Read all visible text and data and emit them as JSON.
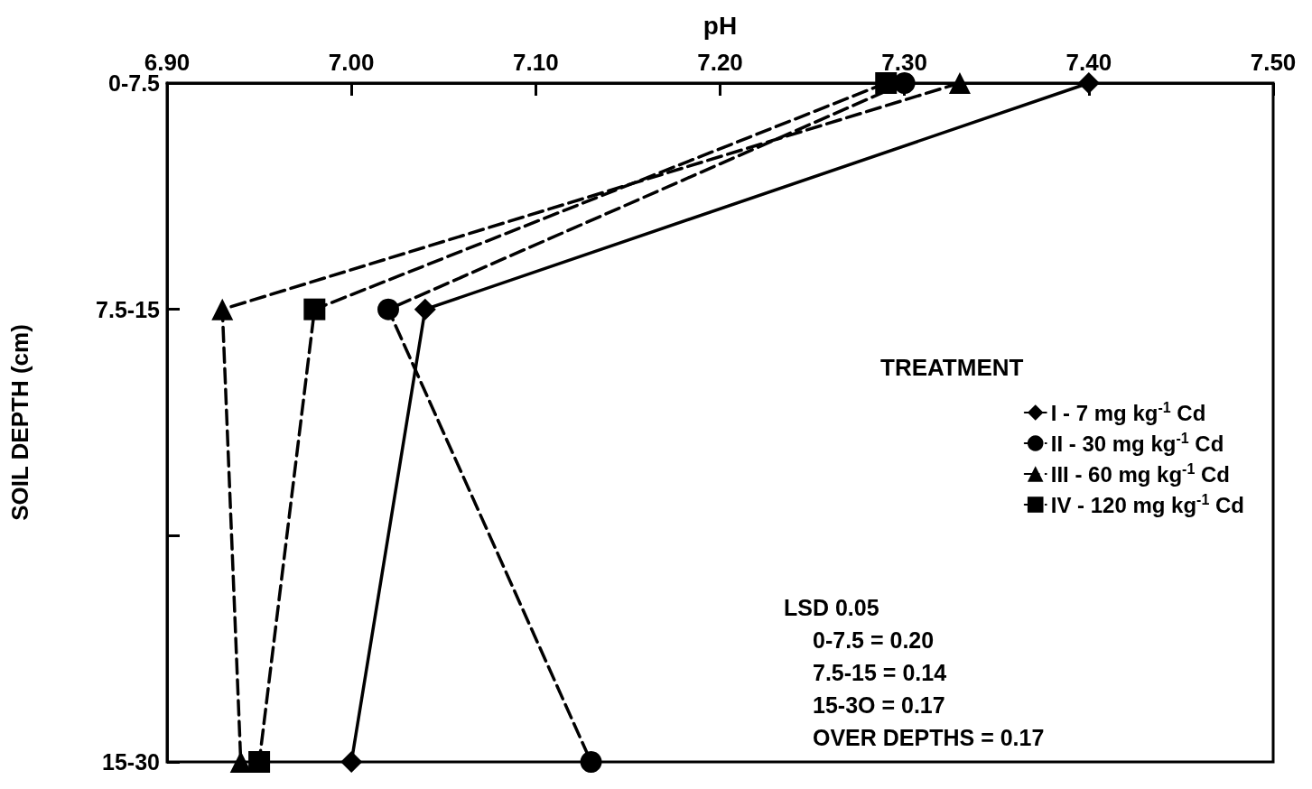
{
  "chart_data": {
    "type": "line",
    "xlabel": "pH",
    "ylabel": "SOIL DEPTH (cm)",
    "legend_title": "TREATMENT",
    "legend": "right",
    "grid": false,
    "xlim": [
      6.9,
      7.5
    ],
    "xticks": [
      {
        "value": 6.9,
        "label": "6.90"
      },
      {
        "value": 7.0,
        "label": "7.00"
      },
      {
        "value": 7.1,
        "label": "7.10"
      },
      {
        "value": 7.2,
        "label": "7.20"
      },
      {
        "value": 7.3,
        "label": "7.30"
      },
      {
        "value": 7.4,
        "label": "7.40"
      },
      {
        "value": 7.5,
        "label": "7.50"
      }
    ],
    "orientation": "horizontal",
    "categories": [
      "0-7.5",
      "7.5-15",
      null,
      "15-30"
    ],
    "series": [
      {
        "name": "I - 7 mg kg$^{-1}$ Cd",
        "color": "#000000",
        "marker": "diamond",
        "line_style": "solid",
        "values": [
          7.4,
          7.04,
          null,
          7.0
        ]
      },
      {
        "name": "II - 30 mg kg$^{-1}$ Cd",
        "color": "#000000",
        "marker": "circle",
        "line_style": "dashed",
        "values": [
          7.3,
          7.02,
          null,
          7.13
        ]
      },
      {
        "name": "III - 60 mg kg$^{-1}$ Cd",
        "color": "#000000",
        "marker": "triangle",
        "line_style": "dashed",
        "values": [
          7.33,
          6.93,
          null,
          6.94
        ]
      },
      {
        "name": "IV - 120 mg kg$^{-1}$ Cd",
        "color": "#000000",
        "marker": "square",
        "line_style": "dashed",
        "values": [
          7.29,
          6.98,
          null,
          6.95
        ]
      }
    ],
    "annotations": [
      "LSD 0.05",
      "0-7.5 = 0.20",
      "7.5-15 = 0.14",
      "15-3O = 0.17",
      "OVER DEPTHS = 0.17"
    ]
  }
}
